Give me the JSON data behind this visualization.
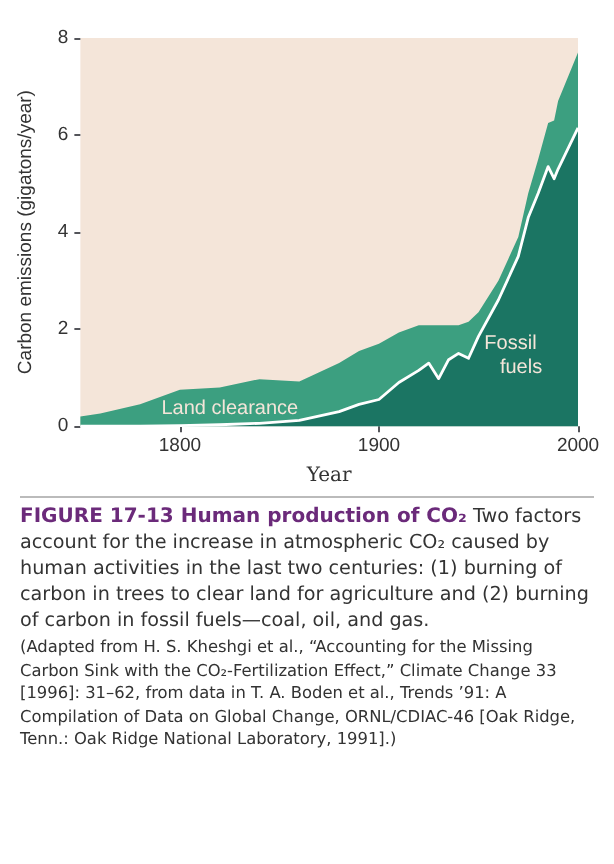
{
  "chart_data": {
    "type": "area",
    "stacked": true,
    "xlabel": "Year",
    "ylabel": "Carbon emissions (gigatons/year)",
    "title": "FIGURE 17-13 Human production of CO₂",
    "annotations": [
      "Two factors account for the increase in atmospheric CO₂ caused by human activities in the last two centuries: (1) burning of carbon in trees to clear land for agriculture and (2) burning of carbon in fossil fuels—coal, oil, and gas.",
      "(Adapted from H. S. Kheshgi et al., “Accounting for the Missing Carbon Sink with the CO₂-Fertilization Effect,” Climate Change 33 [1996]: 31–62, from data in T. A. Boden et al., Trends ’91: A Compilation of Data on Global Change, ORNL/CDIAC-46 [Oak Ridge, Tenn.: Oak Ridge National Laboratory, 1991].)"
    ],
    "x": [
      1750,
      1760,
      1780,
      1800,
      1820,
      1840,
      1860,
      1880,
      1890,
      1900,
      1910,
      1920,
      1925,
      1930,
      1935,
      1940,
      1945,
      1950,
      1960,
      1970,
      1975,
      1980,
      1985,
      1988,
      1990,
      2000
    ],
    "series": [
      {
        "name": "Fossil fuels",
        "color": "#1b7563",
        "values": [
          0,
          0,
          0,
          0.01,
          0.03,
          0.06,
          0.12,
          0.3,
          0.45,
          0.55,
          0.9,
          1.15,
          1.3,
          0.98,
          1.37,
          1.5,
          1.4,
          1.85,
          2.6,
          3.5,
          4.3,
          4.8,
          5.35,
          5.1,
          5.3,
          6.15
        ]
      },
      {
        "name": "Land clearance",
        "color": "#3c9f80",
        "values": [
          0.2,
          0.26,
          0.45,
          0.74,
          0.77,
          0.91,
          0.8,
          1.0,
          1.1,
          1.15,
          1.03,
          0.93,
          0.78,
          1.1,
          0.71,
          0.58,
          0.75,
          0.5,
          0.4,
          0.4,
          0.5,
          0.7,
          0.9,
          1.2,
          1.4,
          1.55
        ]
      }
    ],
    "xlim": [
      1750,
      2000
    ],
    "xticks": [
      1800,
      1900,
      2000
    ],
    "ylim": [
      0,
      8
    ],
    "yticks": [
      0,
      2,
      4,
      6,
      8
    ],
    "grid": false,
    "legend": false
  }
}
